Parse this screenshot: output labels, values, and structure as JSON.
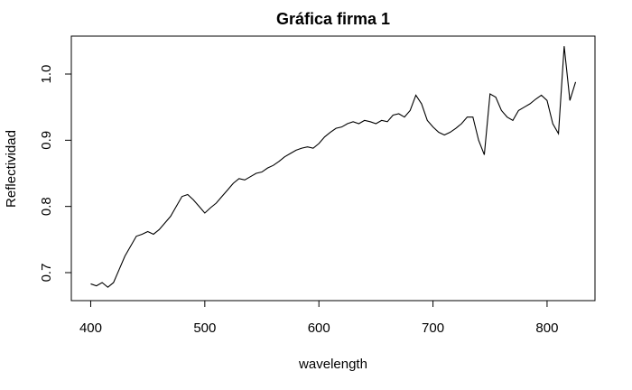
{
  "chart_data": {
    "type": "line",
    "title": "Gráfica firma 1",
    "x_label": "wavelength",
    "y_label": "Reflectividad",
    "x": [
      400,
      405,
      410,
      415,
      420,
      425,
      430,
      435,
      440,
      445,
      450,
      455,
      460,
      465,
      470,
      475,
      480,
      485,
      490,
      495,
      500,
      505,
      510,
      515,
      520,
      525,
      530,
      535,
      540,
      545,
      550,
      555,
      560,
      565,
      570,
      575,
      580,
      585,
      590,
      595,
      600,
      605,
      610,
      615,
      620,
      625,
      630,
      635,
      640,
      645,
      650,
      655,
      660,
      665,
      670,
      675,
      680,
      685,
      690,
      695,
      700,
      705,
      710,
      715,
      720,
      725,
      730,
      735,
      740,
      745,
      750,
      755,
      760,
      765,
      770,
      775,
      780,
      785,
      790,
      795,
      800,
      805,
      810,
      815,
      820,
      825
    ],
    "series": [
      {
        "name": "Reflectividad",
        "color": "#000000",
        "values": [
          0.683,
          0.68,
          0.685,
          0.678,
          0.685,
          0.705,
          0.725,
          0.74,
          0.755,
          0.758,
          0.762,
          0.758,
          0.765,
          0.775,
          0.785,
          0.8,
          0.815,
          0.818,
          0.81,
          0.8,
          0.79,
          0.798,
          0.805,
          0.815,
          0.825,
          0.835,
          0.842,
          0.84,
          0.845,
          0.85,
          0.852,
          0.858,
          0.862,
          0.868,
          0.875,
          0.88,
          0.885,
          0.888,
          0.89,
          0.888,
          0.895,
          0.905,
          0.912,
          0.918,
          0.92,
          0.925,
          0.928,
          0.925,
          0.93,
          0.928,
          0.925,
          0.93,
          0.928,
          0.938,
          0.94,
          0.935,
          0.945,
          0.968,
          0.955,
          0.93,
          0.92,
          0.912,
          0.908,
          0.912,
          0.918,
          0.925,
          0.935,
          0.935,
          0.9,
          0.878,
          0.97,
          0.965,
          0.945,
          0.935,
          0.93,
          0.945,
          0.95,
          0.955,
          0.962,
          0.968,
          0.96,
          0.925,
          0.91,
          1.042,
          0.96,
          0.988
        ]
      }
    ],
    "xlim": [
      383,
      842
    ],
    "ylim": [
      0.6577,
      1.0573
    ],
    "xticks": [
      400,
      500,
      600,
      700,
      800
    ],
    "yticks": [
      0.7,
      0.8,
      0.9,
      {
        "value": 1,
        "label": "1.0"
      }
    ]
  }
}
